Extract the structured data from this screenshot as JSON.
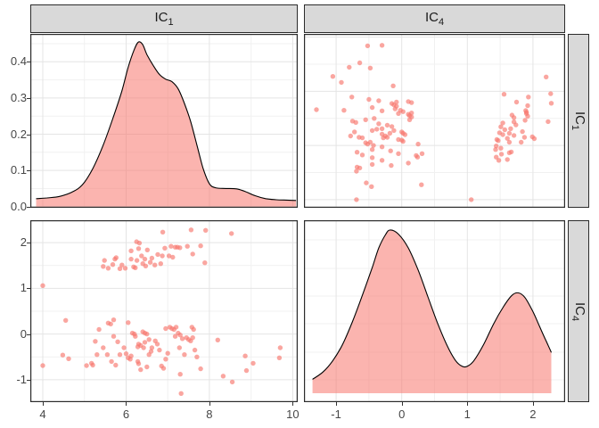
{
  "strips": {
    "col1": {
      "base": "IC",
      "sub": "1"
    },
    "col2": {
      "base": "IC",
      "sub": "4"
    },
    "row1": {
      "base": "IC",
      "sub": "1"
    },
    "row2": {
      "base": "IC",
      "sub": "4"
    }
  },
  "chart_data": {
    "type": "pairs-matrix",
    "title": "",
    "description": "2x2 scatterplot-matrix (ggpairs style) of components IC1 and IC4: diagonal panels are kernel density plots, off-diagonal panels are scatter plots of the same observations (top-right = transpose of bottom-left).",
    "legend": "none",
    "grid": "on",
    "colors": {
      "series": "#F8766D",
      "point_opacity": 0.65,
      "fill_opacity": 0.55,
      "curve_stroke": "#000000",
      "grid_major": "#E4E4E4",
      "grid_minor": "#F1F1F1",
      "panel_bg": "#FFFFFF",
      "panel_border": "#2B2B2B",
      "strip_bg": "#D9D9D9",
      "axis_text": "#474747",
      "tick_mark": "#333333"
    },
    "axis_ic1": {
      "lim": [
        3.7,
        10.12
      ],
      "majors": [
        4,
        6,
        8,
        10
      ],
      "minors": [
        5,
        7,
        9
      ],
      "labels": [
        "4",
        "6",
        "8",
        "10"
      ]
    },
    "axis_ic4": {
      "lim": [
        -1.49,
        2.49
      ],
      "majors": [
        -1,
        0,
        1,
        2
      ],
      "minors": [
        -0.5,
        0.5,
        1.5
      ],
      "labels": [
        "-1",
        "0",
        "1",
        "2"
      ]
    },
    "axis_density_ic1": {
      "lim": [
        0,
        0.477
      ],
      "majors": [
        0,
        0.1,
        0.2,
        0.3,
        0.4
      ],
      "minors": [
        0.05,
        0.15,
        0.25,
        0.35,
        0.45
      ],
      "labels": [
        "0.0",
        "0.1",
        "0.2",
        "0.3",
        "0.4"
      ]
    },
    "density_ic1": {
      "x": [
        3.84,
        4.1,
        4.4,
        4.7,
        4.95,
        5.2,
        5.45,
        5.7,
        5.9,
        6.05,
        6.2,
        6.3,
        6.4,
        6.5,
        6.65,
        6.8,
        6.95,
        7.1,
        7.25,
        7.4,
        7.55,
        7.7,
        7.85,
        8.0,
        8.15,
        8.4,
        8.65,
        8.85,
        9.1,
        9.35,
        9.6,
        9.85,
        10.08
      ],
      "y": [
        0.022,
        0.024,
        0.028,
        0.04,
        0.06,
        0.105,
        0.17,
        0.25,
        0.32,
        0.385,
        0.435,
        0.455,
        0.447,
        0.42,
        0.39,
        0.365,
        0.352,
        0.345,
        0.325,
        0.285,
        0.235,
        0.17,
        0.105,
        0.063,
        0.052,
        0.05,
        0.049,
        0.042,
        0.03,
        0.022,
        0.019,
        0.018,
        0.017
      ],
      "peak": {
        "x": 6.3,
        "y": 0.455
      }
    },
    "density_ic4": {
      "note": "h = density normalized to main peak = 1; main peak at x=-0.18, secondary peak at x=1.78",
      "x": [
        -1.36,
        -1.2,
        -1.05,
        -0.9,
        -0.75,
        -0.6,
        -0.45,
        -0.35,
        -0.25,
        -0.18,
        -0.05,
        0.1,
        0.25,
        0.4,
        0.55,
        0.7,
        0.82,
        0.92,
        1.0,
        1.1,
        1.25,
        1.4,
        1.55,
        1.68,
        1.78,
        1.88,
        2.0,
        2.1,
        2.2,
        2.28
      ],
      "h": [
        0.085,
        0.13,
        0.2,
        0.3,
        0.44,
        0.6,
        0.77,
        0.89,
        0.97,
        1.0,
        0.975,
        0.89,
        0.755,
        0.59,
        0.425,
        0.285,
        0.2,
        0.165,
        0.165,
        0.2,
        0.3,
        0.425,
        0.53,
        0.6,
        0.615,
        0.585,
        0.5,
        0.41,
        0.32,
        0.25
      ],
      "grid_rel_py": [
        22,
        54,
        85,
        116,
        148,
        179
      ]
    },
    "points_ic1_ic4": [
      [
        4.0,
        1.06
      ],
      [
        5.45,
        1.48
      ],
      [
        5.48,
        1.61
      ],
      [
        5.57,
        1.44
      ],
      [
        5.68,
        1.52
      ],
      [
        5.73,
        1.64
      ],
      [
        5.76,
        1.67
      ],
      [
        5.85,
        1.43
      ],
      [
        5.9,
        1.51
      ],
      [
        5.98,
        1.44
      ],
      [
        6.12,
        1.64
      ],
      [
        6.12,
        1.82
      ],
      [
        6.18,
        1.47
      ],
      [
        6.22,
        1.45
      ],
      [
        6.25,
        2.02
      ],
      [
        6.26,
        1.61
      ],
      [
        6.3,
        1.87
      ],
      [
        6.32,
        1.99
      ],
      [
        6.37,
        1.71
      ],
      [
        6.4,
        1.54
      ],
      [
        6.45,
        1.64
      ],
      [
        6.47,
        1.49
      ],
      [
        6.51,
        1.84
      ],
      [
        6.58,
        1.57
      ],
      [
        6.62,
        1.66
      ],
      [
        6.69,
        1.51
      ],
      [
        6.76,
        1.74
      ],
      [
        6.83,
        1.54
      ],
      [
        6.87,
        1.71
      ],
      [
        6.88,
        2.23
      ],
      [
        6.93,
        1.88
      ],
      [
        7.03,
        1.71
      ],
      [
        7.08,
        1.92
      ],
      [
        7.12,
        1.68
      ],
      [
        7.18,
        1.9
      ],
      [
        7.23,
        1.9
      ],
      [
        7.29,
        1.89
      ],
      [
        7.47,
        1.92
      ],
      [
        7.56,
        2.28
      ],
      [
        7.6,
        1.75
      ],
      [
        7.79,
        1.93
      ],
      [
        7.89,
        1.56
      ],
      [
        7.91,
        2.27
      ],
      [
        8.53,
        2.2
      ],
      [
        4.0,
        -0.69
      ],
      [
        4.48,
        -0.46
      ],
      [
        4.55,
        0.3
      ],
      [
        4.62,
        -0.54
      ],
      [
        5.05,
        -0.69
      ],
      [
        5.17,
        -0.64
      ],
      [
        5.2,
        -0.68
      ],
      [
        5.26,
        -0.16
      ],
      [
        5.3,
        -0.45
      ],
      [
        5.35,
        0.1
      ],
      [
        5.45,
        -0.3
      ],
      [
        5.55,
        -0.45
      ],
      [
        5.57,
        0.24
      ],
      [
        5.63,
        0.22
      ],
      [
        5.65,
        -0.6
      ],
      [
        5.7,
        0.31
      ],
      [
        5.7,
        -0.05
      ],
      [
        5.75,
        -0.68
      ],
      [
        5.8,
        -0.17
      ],
      [
        5.85,
        -0.45
      ],
      [
        5.95,
        -0.3
      ],
      [
        6.0,
        -0.43
      ],
      [
        6.05,
        0.25
      ],
      [
        6.05,
        -0.52
      ],
      [
        6.1,
        -0.55
      ],
      [
        6.12,
        -0.48
      ],
      [
        6.15,
        0.02
      ],
      [
        6.2,
        0.0
      ],
      [
        6.22,
        -0.05
      ],
      [
        6.28,
        -0.28
      ],
      [
        6.28,
        -0.6
      ],
      [
        6.3,
        -0.22
      ],
      [
        6.3,
        -0.65
      ],
      [
        6.35,
        -0.25
      ],
      [
        6.35,
        -0.78
      ],
      [
        6.4,
        0.05
      ],
      [
        6.42,
        -0.3
      ],
      [
        6.45,
        0.02
      ],
      [
        6.45,
        -0.18
      ],
      [
        6.5,
        0.0
      ],
      [
        6.5,
        -0.72
      ],
      [
        6.55,
        -0.12
      ],
      [
        6.55,
        -0.45
      ],
      [
        6.6,
        -0.38
      ],
      [
        6.62,
        -0.3
      ],
      [
        6.7,
        -0.15
      ],
      [
        6.75,
        -0.22
      ],
      [
        6.8,
        -0.35
      ],
      [
        6.85,
        -0.7
      ],
      [
        6.9,
        -0.75
      ],
      [
        6.95,
        0.12
      ],
      [
        6.95,
        -0.55
      ],
      [
        7.0,
        -0.42
      ],
      [
        7.05,
        0.15
      ],
      [
        7.1,
        0.12
      ],
      [
        7.15,
        0.1
      ],
      [
        7.18,
        -0.05
      ],
      [
        7.2,
        0.15
      ],
      [
        7.25,
        0.02
      ],
      [
        7.28,
        -0.3
      ],
      [
        7.3,
        -0.02
      ],
      [
        7.3,
        -0.88
      ],
      [
        7.32,
        -1.3
      ],
      [
        7.35,
        -0.1
      ],
      [
        7.4,
        -0.45
      ],
      [
        7.45,
        -0.08
      ],
      [
        7.5,
        -0.12
      ],
      [
        7.55,
        -0.15
      ],
      [
        7.58,
        0.15
      ],
      [
        7.6,
        -0.08
      ],
      [
        7.62,
        0.1
      ],
      [
        7.65,
        -0.35
      ],
      [
        7.7,
        -0.5
      ],
      [
        7.79,
        -0.76
      ],
      [
        8.2,
        -0.13
      ],
      [
        8.33,
        -0.92
      ],
      [
        8.55,
        -1.05
      ],
      [
        8.86,
        -0.48
      ],
      [
        8.89,
        -0.8
      ],
      [
        9.05,
        -0.64
      ],
      [
        9.68,
        -0.52
      ],
      [
        9.7,
        -0.3
      ]
    ]
  }
}
